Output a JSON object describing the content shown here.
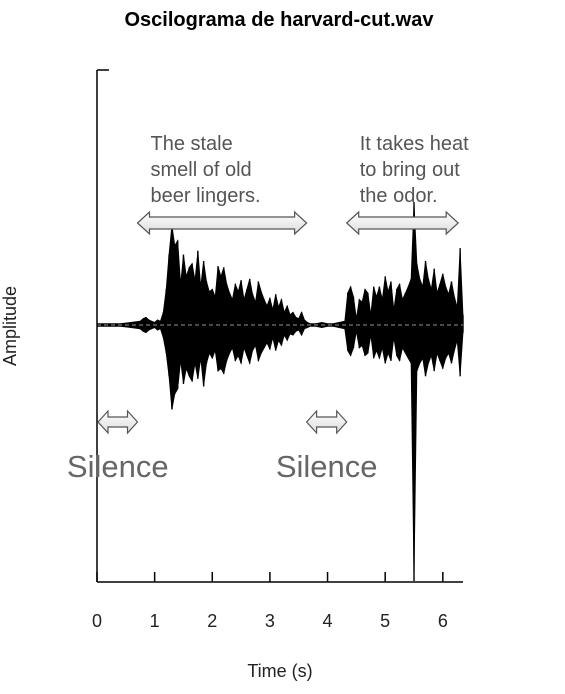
{
  "chart_data": {
    "type": "line",
    "title": "Oscilograma de harvard-cut.wav",
    "xlabel": "Time (s)",
    "ylabel": "Amplitude",
    "xlim": [
      0,
      6.35
    ],
    "ylim": [
      -1,
      1
    ],
    "x_ticks": [
      0,
      1,
      2,
      3,
      4,
      5,
      6
    ],
    "y_ticks": [],
    "grid": false,
    "series": [
      {
        "x": [
          0.0,
          0.4,
          0.75,
          0.8,
          0.85,
          0.9,
          0.95,
          1.0,
          1.05,
          1.1,
          1.15,
          1.2,
          1.25,
          1.3,
          1.35,
          1.4,
          1.45,
          1.5,
          1.55,
          1.6,
          1.65,
          1.7,
          1.75,
          1.8,
          1.85,
          1.9,
          1.95,
          2.0,
          2.05,
          2.1,
          2.15,
          2.2,
          2.25,
          2.3,
          2.35,
          2.4,
          2.45,
          2.5,
          2.55,
          2.6,
          2.65,
          2.7,
          2.75,
          2.8,
          2.85,
          2.9,
          2.95,
          3.0,
          3.05,
          3.1,
          3.15,
          3.2,
          3.25,
          3.3,
          3.35,
          3.4,
          3.45,
          3.5,
          3.55,
          3.6,
          3.65,
          3.7,
          3.75,
          3.8,
          3.9,
          4.0,
          4.1,
          4.2,
          4.3,
          4.35,
          4.4,
          4.45,
          4.5,
          4.55,
          4.6,
          4.65,
          4.7,
          4.75,
          4.8,
          4.85,
          4.9,
          4.95,
          5.0,
          5.05,
          5.1,
          5.15,
          5.2,
          5.25,
          5.3,
          5.35,
          5.4,
          5.45,
          5.5,
          5.55,
          5.6,
          5.65,
          5.7,
          5.75,
          5.8,
          5.85,
          5.9,
          5.95,
          6.0,
          6.05,
          6.1,
          6.15,
          6.2,
          6.25,
          6.3,
          6.35
        ],
        "y_max": [
          0.01,
          0.01,
          0.03,
          0.05,
          0.06,
          0.04,
          0.03,
          0.02,
          0.04,
          0.03,
          0.1,
          0.28,
          0.55,
          0.78,
          0.62,
          0.66,
          0.32,
          0.55,
          0.38,
          0.45,
          0.48,
          0.35,
          0.58,
          0.3,
          0.5,
          0.34,
          0.26,
          0.28,
          0.22,
          0.46,
          0.38,
          0.45,
          0.32,
          0.25,
          0.2,
          0.32,
          0.26,
          0.35,
          0.2,
          0.28,
          0.36,
          0.24,
          0.18,
          0.34,
          0.26,
          0.2,
          0.15,
          0.21,
          0.12,
          0.24,
          0.14,
          0.2,
          0.1,
          0.15,
          0.08,
          0.1,
          0.06,
          0.05,
          0.1,
          0.04,
          0.02,
          0.01,
          0.01,
          0.01,
          0.02,
          0.01,
          0.01,
          0.02,
          0.03,
          0.25,
          0.3,
          0.22,
          0.05,
          0.2,
          0.18,
          0.28,
          0.25,
          0.08,
          0.3,
          0.22,
          0.3,
          0.2,
          0.38,
          0.26,
          0.34,
          0.12,
          0.28,
          0.32,
          0.2,
          0.25,
          0.3,
          0.36,
          0.96,
          0.48,
          0.36,
          0.3,
          0.5,
          0.36,
          0.28,
          0.44,
          0.25,
          0.32,
          0.4,
          0.3,
          0.24,
          0.34,
          0.22,
          0.14,
          0.6,
          0.08
        ],
        "y_min": [
          -0.01,
          -0.01,
          -0.03,
          -0.05,
          -0.06,
          -0.04,
          -0.03,
          -0.02,
          -0.04,
          -0.03,
          -0.1,
          -0.22,
          -0.4,
          -0.66,
          -0.54,
          -0.5,
          -0.28,
          -0.46,
          -0.34,
          -0.4,
          -0.44,
          -0.3,
          -0.42,
          -0.26,
          -0.48,
          -0.3,
          -0.22,
          -0.26,
          -0.2,
          -0.36,
          -0.34,
          -0.38,
          -0.28,
          -0.22,
          -0.18,
          -0.28,
          -0.24,
          -0.3,
          -0.18,
          -0.24,
          -0.3,
          -0.2,
          -0.16,
          -0.28,
          -0.22,
          -0.18,
          -0.14,
          -0.19,
          -0.1,
          -0.2,
          -0.12,
          -0.16,
          -0.08,
          -0.12,
          -0.07,
          -0.08,
          -0.05,
          -0.04,
          -0.08,
          -0.03,
          -0.02,
          -0.01,
          -0.01,
          -0.01,
          -0.02,
          -0.01,
          -0.01,
          -0.02,
          -0.03,
          -0.2,
          -0.24,
          -0.18,
          -0.05,
          -0.18,
          -0.16,
          -0.24,
          -0.22,
          -0.08,
          -0.26,
          -0.2,
          -0.26,
          -0.18,
          -0.3,
          -0.22,
          -0.28,
          -0.1,
          -0.24,
          -0.28,
          -0.18,
          -0.22,
          -0.26,
          -0.3,
          -2.0,
          -0.36,
          -0.3,
          -0.26,
          -0.4,
          -0.3,
          -0.24,
          -0.36,
          -0.22,
          -0.28,
          -0.34,
          -0.26,
          -0.22,
          -0.3,
          -0.2,
          -0.12,
          -0.4,
          -0.06
        ]
      }
    ],
    "annotations": [
      {
        "text": "The stale\nsmell of old\nbeer lingers.",
        "span": [
          0.72,
          3.62
        ]
      },
      {
        "text": "It takes heat\nto bring out\nthe odor.",
        "span": [
          4.35,
          6.25
        ]
      },
      {
        "text": "Silence",
        "span": [
          0.0,
          0.72
        ]
      },
      {
        "text": "Silence",
        "span": [
          3.62,
          4.35
        ]
      }
    ]
  }
}
